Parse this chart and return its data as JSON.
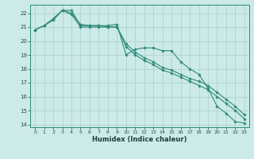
{
  "xlabel": "Humidex (Indice chaleur)",
  "background_color": "#cceae7",
  "grid_color": "#add4d0",
  "line_color": "#2e8b7a",
  "xlim": [
    -0.5,
    23.5
  ],
  "ylim": [
    13.8,
    22.6
  ],
  "yticks": [
    14,
    15,
    16,
    17,
    18,
    19,
    20,
    21,
    22
  ],
  "xticks": [
    0,
    1,
    2,
    3,
    4,
    5,
    6,
    7,
    8,
    9,
    10,
    11,
    12,
    13,
    14,
    15,
    16,
    17,
    18,
    19,
    20,
    21,
    22,
    23
  ],
  "line1_x": [
    0,
    1,
    2,
    3,
    4,
    5,
    6,
    7,
    8,
    9,
    10,
    11,
    12,
    13,
    14,
    15,
    16,
    17,
    18,
    19,
    20,
    21,
    22,
    23
  ],
  "line1_y": [
    20.8,
    21.1,
    21.6,
    22.2,
    22.2,
    21.1,
    21.1,
    21.1,
    21.1,
    21.2,
    19.0,
    19.4,
    19.5,
    19.5,
    19.3,
    19.3,
    18.5,
    18.0,
    17.6,
    16.6,
    15.3,
    14.8,
    14.2,
    14.1
  ],
  "line2_x": [
    0,
    1,
    2,
    3,
    4,
    5,
    6,
    7,
    8,
    9,
    10,
    11,
    12,
    13,
    14,
    15,
    16,
    17,
    18,
    19,
    20,
    21,
    22,
    23
  ],
  "line2_y": [
    20.8,
    21.1,
    21.6,
    22.2,
    22.0,
    21.2,
    21.1,
    21.1,
    21.0,
    21.0,
    19.8,
    19.2,
    18.8,
    18.5,
    18.1,
    17.9,
    17.6,
    17.3,
    17.1,
    16.8,
    16.3,
    15.8,
    15.3,
    14.7
  ],
  "line3_x": [
    0,
    1,
    2,
    3,
    4,
    5,
    6,
    7,
    8,
    9,
    10,
    11,
    12,
    13,
    14,
    15,
    16,
    17,
    18,
    19,
    20,
    21,
    22,
    23
  ],
  "line3_y": [
    20.8,
    21.1,
    21.5,
    22.2,
    21.9,
    21.0,
    21.0,
    21.0,
    21.0,
    21.0,
    19.6,
    19.0,
    18.6,
    18.3,
    17.9,
    17.7,
    17.4,
    17.1,
    16.8,
    16.5,
    16.0,
    15.5,
    15.0,
    14.4
  ]
}
